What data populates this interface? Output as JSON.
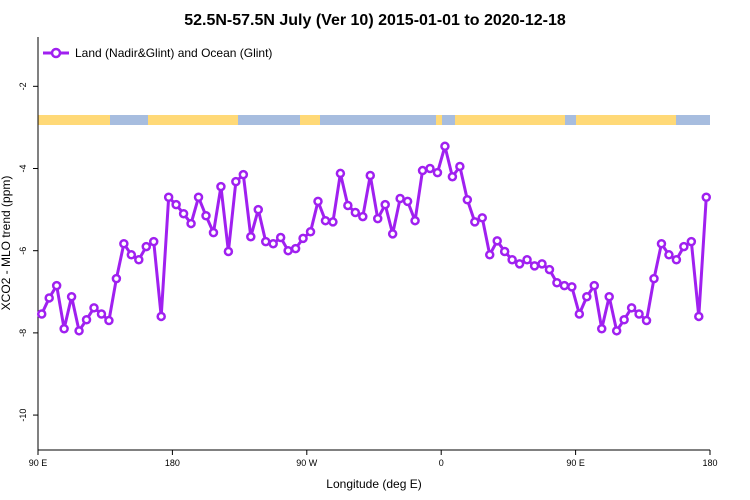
{
  "chart_data": {
    "type": "line",
    "title": "52.5N-57.5N July (Ver 10)   2015-01-01 to 2020-12-18",
    "xlabel": "Longitude (deg E)",
    "ylabel": "XCO2 - MLO trend (ppm)",
    "x": [
      92.5,
      97.5,
      102.5,
      107.5,
      112.5,
      117.5,
      122.5,
      127.5,
      132.5,
      137.5,
      142.5,
      147.5,
      152.5,
      157.5,
      162.5,
      167.5,
      172.5,
      177.5,
      182.5,
      187.5,
      192.5,
      197.5,
      202.5,
      207.5,
      212.5,
      217.5,
      222.5,
      227.5,
      232.5,
      237.5,
      242.5,
      247.5,
      252.5,
      257.5,
      262.5,
      267.5,
      272.5,
      277.5,
      282.5,
      287.5,
      292.5,
      297.5,
      302.5,
      307.5,
      312.5,
      317.5,
      322.5,
      327.5,
      332.5,
      337.5,
      342.5,
      347.5,
      352.5,
      357.5,
      362.5,
      367.5,
      372.5,
      377.5,
      382.5,
      387.5,
      392.5,
      397.5,
      402.5,
      407.5,
      412.5,
      417.5,
      422.5,
      427.5,
      432.5,
      437.5,
      442.5,
      447.5,
      452.5,
      457.5,
      462.5,
      467.5,
      472.5,
      477.5,
      482.5,
      487.5,
      492.5,
      497.5,
      502.5,
      507.5,
      512.5,
      517.5,
      522.5,
      527.5,
      532.5,
      537.5
    ],
    "xlim": [
      90,
      540
    ],
    "xticks": [
      {
        "value": 90,
        "label": "90 E"
      },
      180,
      {
        "value": 270,
        "label": "90 W"
      },
      {
        "value": 360,
        "label": "0"
      },
      {
        "value": 450,
        "label": "90 E"
      },
      {
        "value": 540,
        "label": "180"
      }
    ],
    "ylim": [
      -10.85,
      -0.8
    ],
    "yticks": [
      -10,
      -8,
      -6,
      -4,
      -2
    ],
    "legend": "top-left",
    "series": [
      {
        "name": "Land (Nadir&Glint) and Ocean (Glint)",
        "color": "#a020f0",
        "values": [
          -7.54,
          -7.15,
          -6.85,
          -7.9,
          -7.12,
          -7.95,
          -7.68,
          -7.39,
          -7.54,
          -7.7,
          -6.68,
          -5.83,
          -6.1,
          -6.22,
          -5.9,
          -5.78,
          -7.6,
          -4.7,
          -4.88,
          -5.1,
          -5.34,
          -4.7,
          -5.15,
          -5.56,
          -4.44,
          -6.02,
          -4.32,
          -4.15,
          -5.66,
          -5.0,
          -5.78,
          -5.83,
          -5.68,
          -6.0,
          -5.95,
          -5.7,
          -5.54,
          -4.8,
          -5.27,
          -5.3,
          -4.12,
          -4.9,
          -5.07,
          -5.17,
          -4.17,
          -5.22,
          -4.88,
          -5.59,
          -4.73,
          -4.8,
          -5.27,
          -4.05,
          -4.0,
          -4.1,
          -3.46,
          -4.2,
          -3.95,
          -4.76,
          -5.3,
          -5.2,
          -6.1,
          -5.76,
          -6.02,
          -6.22,
          -6.32,
          -6.22,
          -6.37,
          -6.32,
          -6.46,
          -6.78,
          -6.85,
          -6.88,
          -7.54,
          -7.12,
          -6.85,
          -7.9,
          -7.12,
          -7.95,
          -7.68,
          -7.39,
          -7.54,
          -7.7,
          -6.68,
          -5.83,
          -6.1,
          -6.22,
          -5.9,
          -5.78,
          -7.6,
          -4.7
        ]
      }
    ]
  }
}
